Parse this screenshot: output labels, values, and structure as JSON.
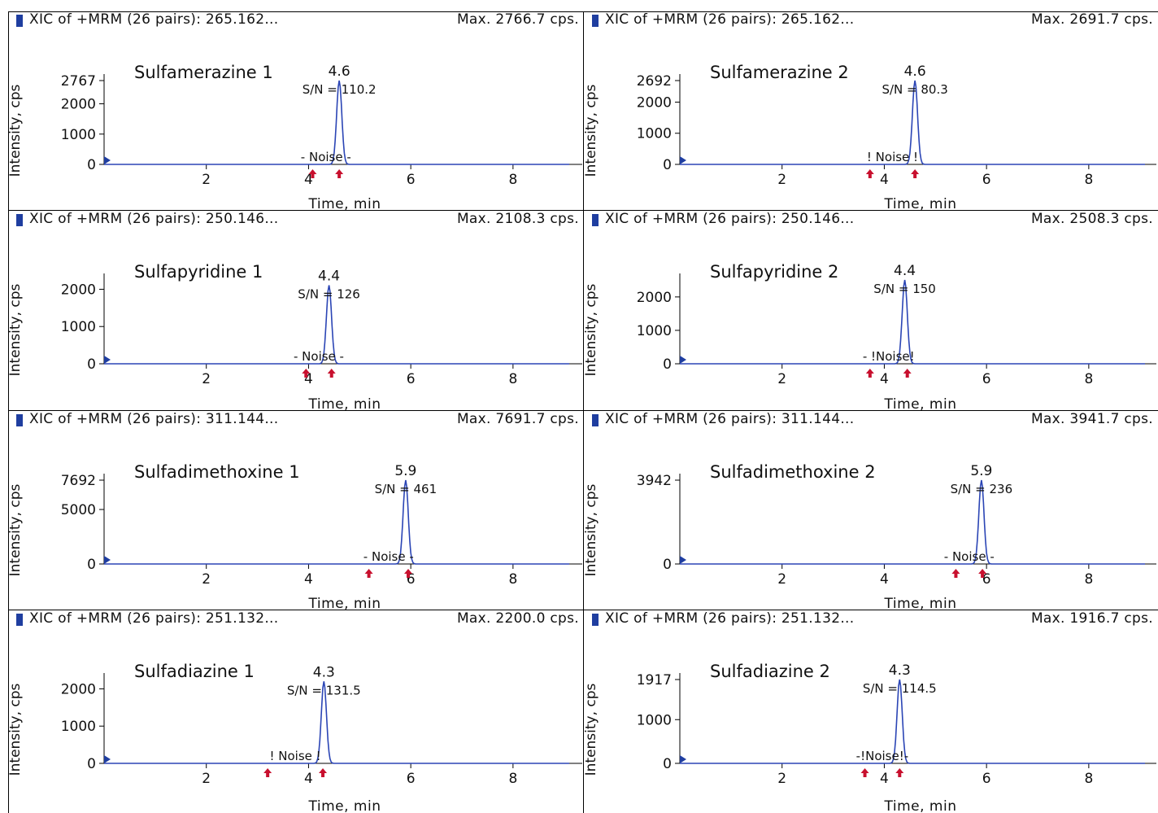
{
  "chart_data": [
    {
      "type": "line",
      "header": "XIC of +MRM (26 pairs): 265.162...",
      "max_label": "Max. 2766.7 cps.",
      "compound": "Sulfamerazine 1",
      "ymax_label": "2767",
      "yticks": [
        0,
        1000,
        2000
      ],
      "ymax": 2767,
      "xticks": [
        2,
        4,
        6,
        8
      ],
      "xlim": [
        0,
        9.1
      ],
      "ylabel": "Intensity, cps",
      "xlabel": "Time, min",
      "peak": {
        "rt": 4.6,
        "rt_label": "4.6",
        "height": 2767,
        "width": 0.05,
        "sn_label": "S/N = 110.2"
      },
      "noise_label": "- Noise -",
      "noise_markers": [
        4.08,
        4.6
      ],
      "color": "#2b45b5",
      "marker_color": "#c8102e"
    },
    {
      "type": "line",
      "header": "XIC of +MRM (26 pairs): 265.162...",
      "max_label": "Max. 2691.7 cps.",
      "compound": "Sulfamerazine 2",
      "ymax_label": "2692",
      "yticks": [
        0,
        1000,
        2000
      ],
      "ymax": 2692,
      "xticks": [
        2,
        4,
        6,
        8
      ],
      "xlim": [
        0,
        9.1
      ],
      "ylabel": "Intensity, cps",
      "xlabel": "Time, min",
      "peak": {
        "rt": 4.6,
        "rt_label": "4.6",
        "height": 2692,
        "width": 0.05,
        "sn_label": "S/N = 80.3"
      },
      "noise_label": "! Noise !",
      "noise_markers": [
        3.72,
        4.6
      ],
      "color": "#2b45b5",
      "marker_color": "#c8102e"
    },
    {
      "type": "line",
      "header": "XIC of +MRM (26 pairs): 250.146...",
      "max_label": "Max. 2108.3 cps.",
      "compound": "Sulfapyridine 1",
      "ymax_label": "",
      "yticks": [
        0,
        1000,
        2000
      ],
      "ymax": 2250,
      "xticks": [
        2,
        4,
        6,
        8
      ],
      "xlim": [
        0,
        9.1
      ],
      "ylabel": "Intensity, cps",
      "xlabel": "Time, min",
      "peak": {
        "rt": 4.4,
        "rt_label": "4.4",
        "height": 2108,
        "width": 0.05,
        "sn_label": "S/N = 126"
      },
      "noise_label": "- Noise -",
      "noise_markers": [
        3.95,
        4.45
      ],
      "color": "#2b45b5",
      "marker_color": "#c8102e"
    },
    {
      "type": "line",
      "header": "XIC of +MRM (26 pairs): 250.146...",
      "max_label": "Max. 2508.3 cps.",
      "compound": "Sulfapyridine 2",
      "ymax_label": "",
      "yticks": [
        0,
        1000,
        2000
      ],
      "ymax": 2508,
      "xticks": [
        2,
        4,
        6,
        8
      ],
      "xlim": [
        0,
        9.1
      ],
      "ylabel": "Intensity, cps",
      "xlabel": "Time, min",
      "peak": {
        "rt": 4.4,
        "rt_label": "4.4",
        "height": 2508,
        "width": 0.05,
        "sn_label": "S/N = 150"
      },
      "noise_label": "- !Noise!",
      "noise_markers": [
        3.72,
        4.45
      ],
      "color": "#2b45b5",
      "marker_color": "#c8102e"
    },
    {
      "type": "line",
      "header": "XIC of +MRM (26 pairs): 311.144...",
      "max_label": "Max. 7691.7 cps.",
      "compound": "Sulfadimethoxine 1",
      "ymax_label": "7692",
      "yticks": [
        0,
        5000
      ],
      "ymax": 7692,
      "xticks": [
        2,
        4,
        6,
        8
      ],
      "xlim": [
        0,
        9.1
      ],
      "ylabel": "Intensity, cps",
      "xlabel": "Time, min",
      "peak": {
        "rt": 5.9,
        "rt_label": "5.9",
        "height": 7692,
        "width": 0.05,
        "sn_label": "S/N = 461"
      },
      "noise_label": "- Noise -",
      "noise_markers": [
        5.18,
        5.95
      ],
      "color": "#2b45b5",
      "marker_color": "#c8102e"
    },
    {
      "type": "line",
      "header": "XIC of +MRM (26 pairs): 311.144...",
      "max_label": "Max. 3941.7 cps.",
      "compound": "Sulfadimethoxine 2",
      "ymax_label": "3942",
      "yticks": [
        0
      ],
      "ymax": 3942,
      "xticks": [
        2,
        4,
        6,
        8
      ],
      "xlim": [
        0,
        9.1
      ],
      "ylabel": "Intensity, cps",
      "xlabel": "Time, min",
      "peak": {
        "rt": 5.9,
        "rt_label": "5.9",
        "height": 3942,
        "width": 0.05,
        "sn_label": "S/N = 236"
      },
      "noise_label": "- Noise -",
      "noise_markers": [
        5.4,
        5.92
      ],
      "color": "#2b45b5",
      "marker_color": "#c8102e"
    },
    {
      "type": "line",
      "header": "XIC of +MRM (26 pairs): 251.132...",
      "max_label": "Max. 2200.0 cps.",
      "compound": "Sulfadiazine 1",
      "ymax_label": "",
      "yticks": [
        0,
        1000,
        2000
      ],
      "ymax": 2250,
      "xticks": [
        2,
        4,
        6,
        8
      ],
      "xlim": [
        0,
        9.1
      ],
      "ylabel": "Intensity, cps",
      "xlabel": "Time, min",
      "peak": {
        "rt": 4.3,
        "rt_label": "4.3",
        "height": 2200,
        "width": 0.05,
        "sn_label": "S/N = 131.5"
      },
      "noise_label": "! Noise !",
      "noise_markers": [
        3.2,
        4.28
      ],
      "color": "#2b45b5",
      "marker_color": "#c8102e"
    },
    {
      "type": "line",
      "header": "XIC of +MRM (26 pairs): 251.132...",
      "max_label": "Max. 1916.7 cps.",
      "compound": "Sulfadiazine 2",
      "ymax_label": "1917",
      "yticks": [
        0,
        1000
      ],
      "ymax": 1917,
      "xticks": [
        2,
        4,
        6,
        8
      ],
      "xlim": [
        0,
        9.1
      ],
      "ylabel": "Intensity, cps",
      "xlabel": "Time, min",
      "peak": {
        "rt": 4.3,
        "rt_label": "4.3",
        "height": 1917,
        "width": 0.05,
        "sn_label": "S/N = 114.5"
      },
      "noise_label": "-!Noise!-",
      "noise_markers": [
        3.62,
        4.3
      ],
      "color": "#2b45b5",
      "marker_color": "#c8102e"
    }
  ]
}
